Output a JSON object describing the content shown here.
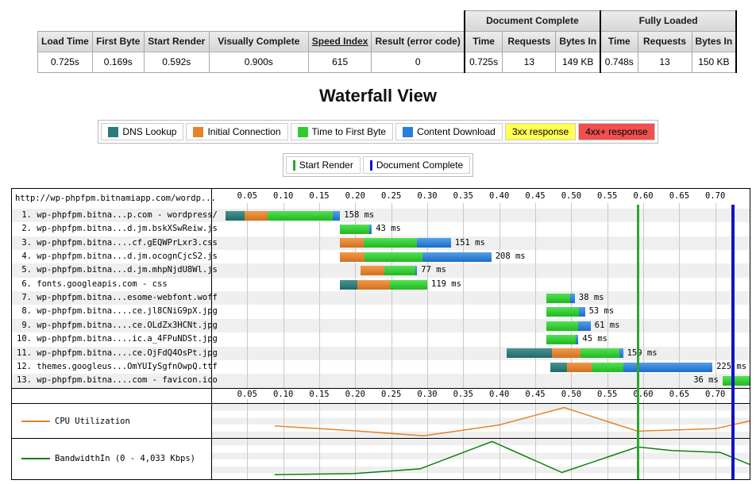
{
  "summary": {
    "group_headers": {
      "doc_complete": "Document Complete",
      "fully_loaded": "Fully Loaded"
    },
    "columns": [
      "Load Time",
      "First Byte",
      "Start Render",
      "Visually Complete",
      "Speed Index",
      "Result (error code)",
      "Time",
      "Requests",
      "Bytes In",
      "Time",
      "Requests",
      "Bytes In"
    ],
    "values": [
      "0.725s",
      "0.169s",
      "0.592s",
      "0.900s",
      "615",
      "0",
      "0.725s",
      "13",
      "149 KB",
      "0.748s",
      "13",
      "150 KB"
    ]
  },
  "title": "Waterfall View",
  "legend": {
    "items": [
      {
        "label": "DNS Lookup",
        "color": "#2a7c7c",
        "type": "swatch"
      },
      {
        "label": "Initial Connection",
        "color": "#e5832a",
        "type": "swatch"
      },
      {
        "label": "Time to First Byte",
        "color": "#2fcc2f",
        "type": "swatch"
      },
      {
        "label": "Content Download",
        "color": "#2680dc",
        "type": "swatch"
      },
      {
        "label": "3xx response",
        "color": "#ffff55",
        "type": "fill"
      },
      {
        "label": "4xx+ response",
        "color": "#f05050",
        "type": "fill"
      }
    ],
    "markers": [
      {
        "label": "Start Render",
        "color": "#2ca52c"
      },
      {
        "label": "Document Complete",
        "color": "#1111cc"
      }
    ]
  },
  "chart_data": {
    "type": "waterfall",
    "url_header": "http://wp-phpfpm.bitnamiapp.com/wordp...",
    "time_axis": {
      "unit": "seconds",
      "max": 0.748,
      "ticks": [
        0.05,
        0.1,
        0.15,
        0.2,
        0.25,
        0.3,
        0.35,
        0.4,
        0.45,
        0.5,
        0.55,
        0.6,
        0.65,
        0.7
      ],
      "tick_labels": [
        "0.05",
        "0.10",
        "0.15",
        "0.20",
        "0.25",
        "0.30",
        "0.35",
        "0.40",
        "0.45",
        "0.50",
        "0.55",
        "0.60",
        "0.65",
        "0.70"
      ]
    },
    "markers": {
      "start_render": 0.592,
      "document_complete": 0.725
    },
    "marker_colors": {
      "start_render": "#2ca52c",
      "document_complete": "#1212cc"
    },
    "segment_colors": {
      "dns": "#2a7c7c",
      "connect": "#e5832a",
      "ttfb": "#2fcc2f",
      "download": "#2680dc"
    },
    "requests": [
      {
        "label": " 1. wp-phpfpm.bitna...p.com - wordpress/",
        "time": "158 ms",
        "segments": [
          {
            "type": "dns",
            "start": 0.02,
            "end": 0.046
          },
          {
            "type": "connect",
            "start": 0.046,
            "end": 0.078
          },
          {
            "type": "ttfb",
            "start": 0.078,
            "end": 0.169
          },
          {
            "type": "download",
            "start": 0.169,
            "end": 0.179
          }
        ]
      },
      {
        "label": " 2. wp-phpfpm.bitna...d.jm.bskXSwReiw.js",
        "time": "43 ms",
        "segments": [
          {
            "type": "ttfb",
            "start": 0.179,
            "end": 0.219
          },
          {
            "type": "download",
            "start": 0.219,
            "end": 0.223
          }
        ]
      },
      {
        "label": " 3. wp-phpfpm.bitna....cf.gEQWPrLxr3.css",
        "time": "151 ms",
        "segments": [
          {
            "type": "connect",
            "start": 0.179,
            "end": 0.212
          },
          {
            "type": "ttfb",
            "start": 0.212,
            "end": 0.286
          },
          {
            "type": "download",
            "start": 0.286,
            "end": 0.333
          }
        ]
      },
      {
        "label": " 4. wp-phpfpm.bitna...d.jm.ocognCjcS2.js",
        "time": "208 ms",
        "segments": [
          {
            "type": "connect",
            "start": 0.179,
            "end": 0.213
          },
          {
            "type": "ttfb",
            "start": 0.213,
            "end": 0.293
          },
          {
            "type": "download",
            "start": 0.293,
            "end": 0.389
          }
        ]
      },
      {
        "label": " 5. wp-phpfpm.bitna...d.jm.mhpNjdU8Wl.js",
        "time": "77 ms",
        "segments": [
          {
            "type": "connect",
            "start": 0.207,
            "end": 0.24
          },
          {
            "type": "ttfb",
            "start": 0.24,
            "end": 0.283
          },
          {
            "type": "download",
            "start": 0.283,
            "end": 0.286
          }
        ]
      },
      {
        "label": " 6. fonts.googleapis.com - css",
        "time": "119 ms",
        "segments": [
          {
            "type": "dns",
            "start": 0.179,
            "end": 0.203
          },
          {
            "type": "connect",
            "start": 0.203,
            "end": 0.248
          },
          {
            "type": "ttfb",
            "start": 0.248,
            "end": 0.3
          }
        ]
      },
      {
        "label": " 7. wp-phpfpm.bitna...esome-webfont.woff",
        "time": "38 ms",
        "segments": [
          {
            "type": "ttfb",
            "start": 0.465,
            "end": 0.499
          },
          {
            "type": "download",
            "start": 0.499,
            "end": 0.505
          }
        ]
      },
      {
        "label": " 8. wp-phpfpm.bitna....ce.jl8CNiG9pX.jpg",
        "time": "53 ms",
        "segments": [
          {
            "type": "ttfb",
            "start": 0.465,
            "end": 0.511
          },
          {
            "type": "download",
            "start": 0.511,
            "end": 0.519
          }
        ]
      },
      {
        "label": " 9. wp-phpfpm.bitna....ce.OLdZx3HCNt.jpg",
        "time": "61 ms",
        "segments": [
          {
            "type": "ttfb",
            "start": 0.465,
            "end": 0.51
          },
          {
            "type": "download",
            "start": 0.51,
            "end": 0.527
          }
        ]
      },
      {
        "label": "10. wp-phpfpm.bitna....ic.a_4FPuNDSt.jpg",
        "time": "45 ms",
        "segments": [
          {
            "type": "ttfb",
            "start": 0.465,
            "end": 0.506
          },
          {
            "type": "download",
            "start": 0.506,
            "end": 0.51
          }
        ]
      },
      {
        "label": "11. wp-phpfpm.bitna....ce.OjFdQ4OsPt.jpg",
        "time": "159 ms",
        "segments": [
          {
            "type": "dns",
            "start": 0.41,
            "end": 0.473
          },
          {
            "type": "connect",
            "start": 0.473,
            "end": 0.513
          },
          {
            "type": "ttfb",
            "start": 0.513,
            "end": 0.567
          },
          {
            "type": "download",
            "start": 0.567,
            "end": 0.572
          }
        ]
      },
      {
        "label": "12. themes.googleus...OmYUIySgfnOwpQ.ttf",
        "time": "225 ms",
        "segments": [
          {
            "type": "dns",
            "start": 0.471,
            "end": 0.494
          },
          {
            "type": "connect",
            "start": 0.494,
            "end": 0.528
          },
          {
            "type": "ttfb",
            "start": 0.528,
            "end": 0.572
          },
          {
            "type": "download",
            "start": 0.572,
            "end": 0.696
          }
        ]
      },
      {
        "label": "13. wp-phpfpm.bitna....com - favicon.ico",
        "time": "36 ms",
        "label_before": true,
        "segments": [
          {
            "type": "ttfb",
            "start": 0.71,
            "end": 0.748
          }
        ]
      }
    ],
    "cpu": {
      "label": "CPU Utilization",
      "color": "#e5832a",
      "points": [
        [
          0.088,
          0.34
        ],
        [
          0.2,
          0.18
        ],
        [
          0.295,
          0.02
        ],
        [
          0.4,
          0.37
        ],
        [
          0.49,
          0.93
        ],
        [
          0.592,
          0.17
        ],
        [
          0.7,
          0.25
        ],
        [
          0.748,
          0.5
        ]
      ]
    },
    "bandwidth": {
      "label": "BandwidthIn (0 - 4,033 Kbps)",
      "color": "#0e7e0e",
      "points": [
        [
          0.088,
          0.06
        ],
        [
          0.198,
          0.09
        ],
        [
          0.29,
          0.22
        ],
        [
          0.39,
          0.97
        ],
        [
          0.487,
          0.12
        ],
        [
          0.592,
          0.82
        ],
        [
          0.64,
          0.72
        ],
        [
          0.707,
          0.67
        ],
        [
          0.748,
          0.34
        ]
      ]
    }
  }
}
